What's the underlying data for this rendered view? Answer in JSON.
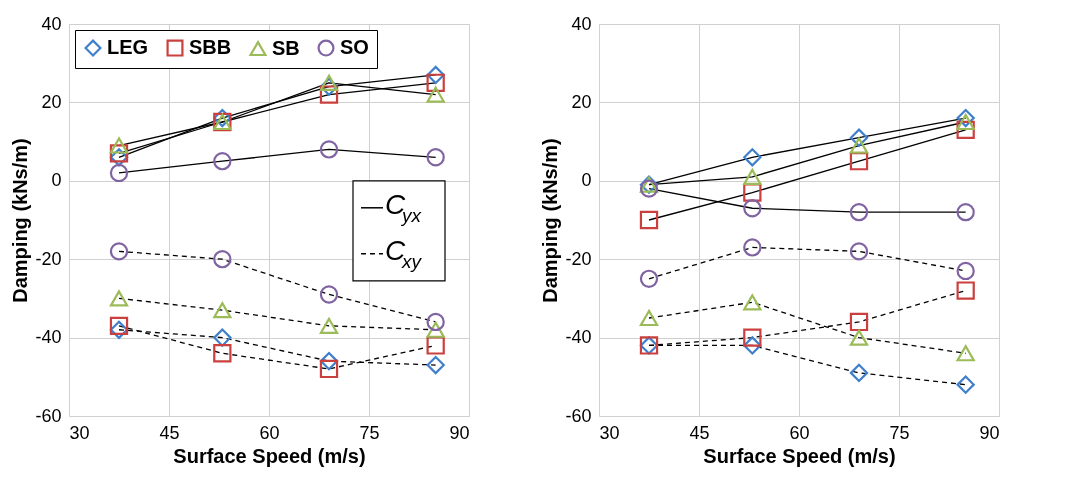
{
  "chart_data": [
    {
      "type": "line",
      "xlabel": "Surface Speed (m/s)",
      "ylabel": "Damping (kNs/m)",
      "x": [
        37.5,
        53,
        69,
        85
      ],
      "xlim": [
        30,
        90
      ],
      "xticks": [
        30,
        45,
        60,
        75,
        90
      ],
      "ylim": [
        -60,
        40
      ],
      "yticks": [
        -60,
        -40,
        -20,
        0,
        20,
        40
      ],
      "grid": true,
      "legend": "top left",
      "annotations": [
        "C$_{yx}$",
        "C$_{xy}$"
      ],
      "series": [
        {
          "name": "LEG",
          "color": "#3f7fcb",
          "marker": "diamond",
          "line_style": "solid",
          "values": [
            6,
            16,
            24,
            27
          ]
        },
        {
          "name": "SBB",
          "color": "#c9403f",
          "marker": "square",
          "line_style": "solid",
          "values": [
            7,
            15,
            22,
            25
          ]
        },
        {
          "name": "SB",
          "color": "#9bbb59",
          "marker": "triangle",
          "line_style": "solid",
          "values": [
            9,
            15,
            25,
            22
          ]
        },
        {
          "name": "SO",
          "color": "#8064a2",
          "marker": "circle",
          "line_style": "solid",
          "values": [
            2,
            5,
            8,
            6
          ]
        },
        {
          "color": "#3f7fcb",
          "marker": "diamond",
          "line_style": "dashed",
          "values": [
            -38,
            -40,
            -46,
            -47
          ]
        },
        {
          "color": "#c9403f",
          "marker": "square",
          "line_style": "dashed",
          "values": [
            -37,
            -44,
            -48,
            -42
          ]
        },
        {
          "color": "#9bbb59",
          "marker": "triangle",
          "line_style": "dashed",
          "values": [
            -30,
            -33,
            -37,
            -38
          ]
        },
        {
          "color": "#8064a2",
          "marker": "circle",
          "line_style": "dashed",
          "values": [
            -18,
            -20,
            -29,
            -36
          ]
        }
      ]
    },
    {
      "type": "line",
      "xlabel": "Surface Speed (m/s)",
      "ylabel": "Damping (kNs/m)",
      "x": [
        37.5,
        53,
        69,
        85
      ],
      "xlim": [
        30,
        90
      ],
      "xticks": [
        30,
        45,
        60,
        75,
        90
      ],
      "ylim": [
        -60,
        40
      ],
      "yticks": [
        -60,
        -40,
        -20,
        0,
        20,
        40
      ],
      "grid": true,
      "series": [
        {
          "color": "#3f7fcb",
          "marker": "diamond",
          "line_style": "solid",
          "values": [
            -1,
            6,
            11,
            16
          ]
        },
        {
          "color": "#c9403f",
          "marker": "square",
          "line_style": "solid",
          "values": [
            -10,
            -3,
            5,
            13
          ]
        },
        {
          "color": "#9bbb59",
          "marker": "triangle",
          "line_style": "solid",
          "values": [
            -1,
            1,
            9,
            15
          ]
        },
        {
          "color": "#8064a2",
          "marker": "circle",
          "line_style": "solid",
          "values": [
            -2,
            -7,
            -8,
            -8
          ]
        },
        {
          "color": "#3f7fcb",
          "marker": "diamond",
          "line_style": "dashed",
          "values": [
            -42,
            -42,
            -49,
            -52
          ]
        },
        {
          "color": "#c9403f",
          "marker": "square",
          "line_style": "dashed",
          "values": [
            -42,
            -40,
            -36,
            -28
          ]
        },
        {
          "color": "#9bbb59",
          "marker": "triangle",
          "line_style": "dashed",
          "values": [
            -35,
            -31,
            -40,
            -44
          ]
        },
        {
          "color": "#8064a2",
          "marker": "circle",
          "line_style": "dashed",
          "values": [
            -25,
            -17,
            -18,
            -23
          ]
        }
      ]
    }
  ]
}
